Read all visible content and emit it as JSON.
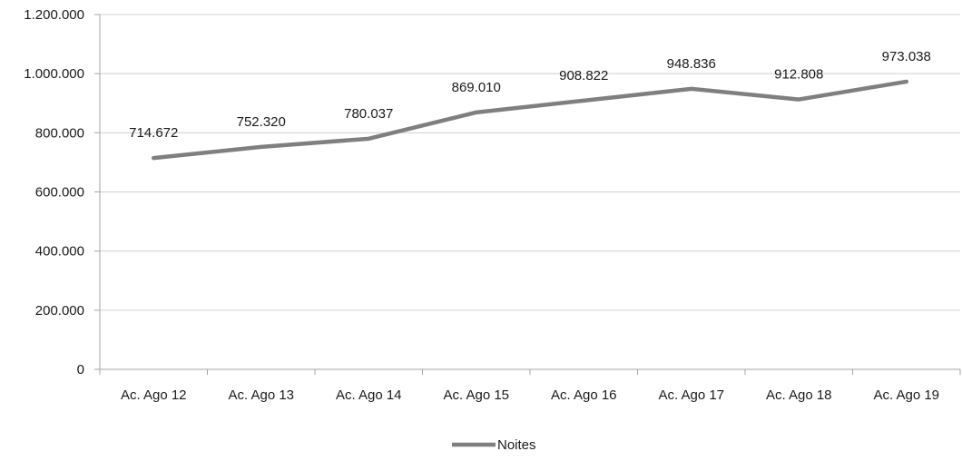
{
  "chart_data": {
    "type": "line",
    "title": "",
    "xlabel": "",
    "ylabel": "",
    "categories": [
      "Ac. Ago 12",
      "Ac. Ago 13",
      "Ac. Ago 14",
      "Ac. Ago 15",
      "Ac. Ago 16",
      "Ac. Ago 17",
      "Ac. Ago 18",
      "Ac. Ago 19"
    ],
    "series": [
      {
        "name": "Noites",
        "values": [
          714672,
          752320,
          780037,
          869010,
          908822,
          948836,
          912808,
          973038
        ],
        "data_labels": [
          "714.672",
          "752.320",
          "780.037",
          "869.010",
          "908.822",
          "948.836",
          "912.808",
          "973.038"
        ],
        "color": "#7f7f7f"
      }
    ],
    "ylim": [
      0,
      1200000
    ],
    "y_ticks": [
      0,
      200000,
      400000,
      600000,
      800000,
      1000000,
      1200000
    ],
    "y_tick_labels": [
      "0",
      "200.000",
      "400.000",
      "600.000",
      "800.000",
      "1.000.000",
      "1.200.000"
    ],
    "grid": true,
    "legend_position": "bottom"
  }
}
